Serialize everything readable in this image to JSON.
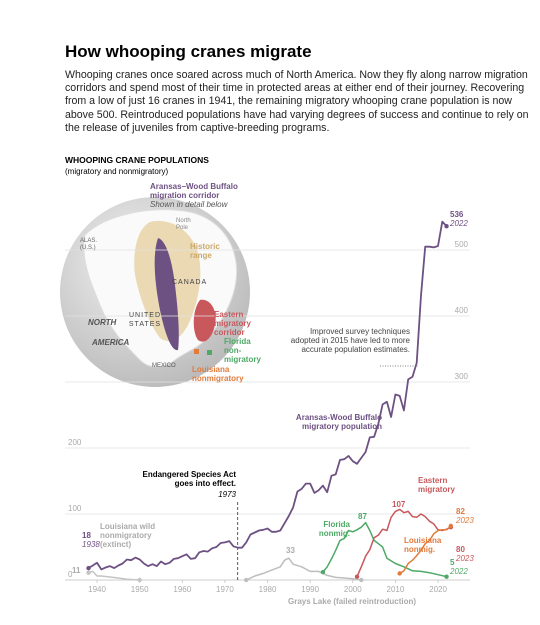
{
  "chart_data": {
    "type": "line",
    "title": "How whooping cranes migrate",
    "subtitle": "Whooping cranes once soared across much of North America. Now they fly along narrow migration corridors and spend most of their time in protected areas at either end of their journey. Recovering from a low of just 16 cranes in 1941, the remaining migratory whooping crane population is now above 500. Reintroduced populations have had varying degrees of success and continue to rely on the release of juveniles from captive-breeding programs.",
    "heading": "WHOOPING CRANE POPULATIONS",
    "subheading": "(migratory and nonmigratory)",
    "xlim": [
      1936,
      2026
    ],
    "ylim": [
      0,
      550
    ],
    "xticks": [
      1940,
      1950,
      1960,
      1970,
      1980,
      1990,
      2000,
      2010,
      2020
    ],
    "yticks": [
      0,
      100,
      200,
      300,
      400,
      500
    ],
    "grid": true,
    "series": [
      {
        "name": "Aransas-Wood Buffalo migratory population",
        "color": "#6e5183",
        "x": [
          1938,
          1939,
          1940,
          1941,
          1942,
          1943,
          1944,
          1945,
          1946,
          1947,
          1948,
          1949,
          1950,
          1951,
          1952,
          1953,
          1954,
          1955,
          1956,
          1957,
          1958,
          1959,
          1960,
          1961,
          1962,
          1963,
          1964,
          1965,
          1966,
          1967,
          1968,
          1969,
          1970,
          1971,
          1972,
          1973,
          1974,
          1975,
          1976,
          1977,
          1978,
          1979,
          1980,
          1981,
          1982,
          1983,
          1984,
          1985,
          1986,
          1987,
          1988,
          1989,
          1990,
          1991,
          1992,
          1993,
          1994,
          1995,
          1996,
          1997,
          1998,
          1999,
          2000,
          2001,
          2002,
          2003,
          2004,
          2005,
          2006,
          2007,
          2008,
          2009,
          2010,
          2011,
          2012,
          2013,
          2014,
          2015,
          2016,
          2017,
          2018,
          2019,
          2020,
          2021,
          2022
        ],
        "values": [
          18,
          22,
          26,
          16,
          19,
          21,
          18,
          22,
          25,
          31,
          30,
          34,
          31,
          25,
          21,
          24,
          21,
          28,
          24,
          26,
          32,
          33,
          36,
          39,
          32,
          33,
          42,
          44,
          43,
          48,
          50,
          56,
          57,
          59,
          51,
          49,
          49,
          57,
          69,
          72,
          75,
          76,
          78,
          73,
          73,
          75,
          86,
          97,
          110,
          134,
          138,
          146,
          146,
          132,
          136,
          143,
          133,
          158,
          160,
          182,
          183,
          188,
          180,
          176,
          185,
          194,
          216,
          217,
          237,
          266,
          270,
          247,
          281,
          279,
          257,
          304,
          308,
          329,
          431,
          505,
          505,
          504,
          506,
          543,
          536
        ]
      },
      {
        "name": "Louisiana wild nonmigratory (extinct)",
        "color": "#c4c4c4",
        "x": [
          1938,
          1939,
          1940,
          1941,
          1945,
          1947,
          1950
        ],
        "values": [
          11,
          13,
          6,
          6,
          3,
          1,
          0
        ]
      },
      {
        "name": "Grays Lake (failed reintroduction)",
        "color": "#bdbdbd",
        "x": [
          1975,
          1977,
          1979,
          1981,
          1983,
          1984,
          1985,
          1986,
          1988,
          1990,
          1992,
          1994,
          1996,
          1998,
          2000,
          2002
        ],
        "values": [
          0,
          6,
          10,
          15,
          20,
          30,
          33,
          24,
          20,
          13,
          13,
          7,
          4,
          3,
          2,
          0
        ]
      },
      {
        "name": "Florida nonmig.",
        "color": "#4ea866",
        "x": [
          1993,
          1994,
          1995,
          1996,
          1997,
          1998,
          1999,
          2000,
          2001,
          2002,
          2003,
          2004,
          2005,
          2006,
          2007,
          2008,
          2010,
          2012,
          2014,
          2016,
          2018,
          2020,
          2022
        ],
        "values": [
          12,
          20,
          32,
          45,
          60,
          63,
          75,
          73,
          76,
          80,
          87,
          75,
          60,
          55,
          50,
          33,
          25,
          20,
          14,
          13,
          11,
          8,
          5
        ]
      },
      {
        "name": "Eastern migratory",
        "color": "#c9585c",
        "x": [
          2001,
          2002,
          2003,
          2004,
          2005,
          2006,
          2007,
          2008,
          2009,
          2010,
          2011,
          2012,
          2013,
          2014,
          2015,
          2016,
          2017,
          2018,
          2019,
          2020,
          2021,
          2022,
          2023
        ],
        "values": [
          5,
          20,
          36,
          46,
          64,
          68,
          77,
          75,
          95,
          104,
          107,
          102,
          104,
          96,
          95,
          100,
          96,
          89,
          85,
          76,
          75,
          77,
          80
        ]
      },
      {
        "name": "Louisiana nonmig.",
        "color": "#e07b3c",
        "x": [
          2011,
          2012,
          2013,
          2014,
          2015,
          2016,
          2017,
          2018,
          2019,
          2020,
          2021,
          2022,
          2023
        ],
        "values": [
          10,
          14,
          25,
          30,
          37,
          45,
          55,
          60,
          70,
          75,
          76,
          76,
          82
        ]
      }
    ],
    "annotations": [
      {
        "text": "Endangered Species Act goes into effect.",
        "year": 1973
      },
      {
        "text": "Improved survey techniques adopted in 2015 have led to more accurate population estimates."
      }
    ],
    "map": {
      "corridor": "Aransas–Wood Buffalo migration corridor",
      "corridor_note": "Shown in detail below",
      "pole": "North Pole",
      "alaska": "ALAS. (U.S.)",
      "historic": "Historic range",
      "canada": "CANADA",
      "us": "UNITED STATES",
      "north": "NORTH",
      "america": "AMERICA",
      "mexico": "MEXICO",
      "eastern": "Eastern migratory corridor",
      "florida": "Florida non-migratory",
      "louisiana": "Louisiana nonmigratory"
    }
  }
}
